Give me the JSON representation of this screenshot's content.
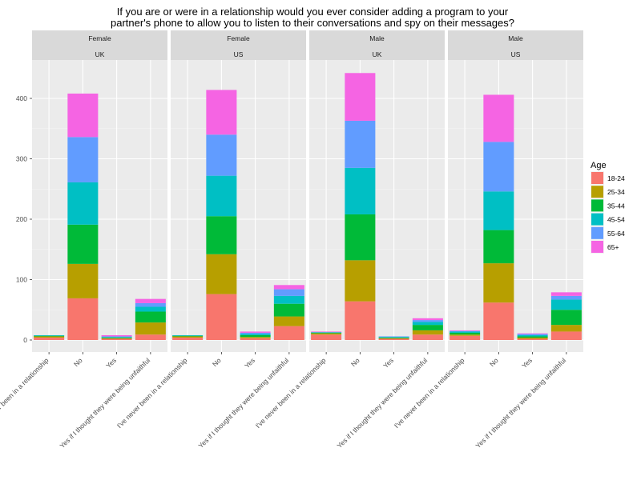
{
  "chart_data": {
    "type": "bar",
    "stacked": true,
    "title_lines": [
      "If you are or were in a relationship would you ever consider adding a program to your",
      "partner's phone to allow you to listen to their conversations and spy on their messages?"
    ],
    "xlabel": "",
    "ylabel": "",
    "ylim": [
      0,
      450
    ],
    "yticks": [
      0,
      100,
      200,
      300,
      400
    ],
    "grid": true,
    "legend_position": "right",
    "legend_title": "Age",
    "categories": [
      "I've never been in a relationship",
      "No",
      "Yes",
      "Yes if I thought they were being unfaithful"
    ],
    "series": [
      {
        "name": "18-24",
        "color": "#F8766D"
      },
      {
        "name": "25-34",
        "color": "#B79F00"
      },
      {
        "name": "35-44",
        "color": "#00BA38"
      },
      {
        "name": "45-54",
        "color": "#00BFC4"
      },
      {
        "name": "55-64",
        "color": "#619CFF"
      },
      {
        "name": "65+",
        "color": "#F564E3"
      }
    ],
    "facets": [
      {
        "gender": "Female",
        "country": "UK",
        "values": [
          [
            4,
            69,
            2,
            9
          ],
          [
            2,
            57,
            1,
            20
          ],
          [
            1,
            65,
            1,
            18
          ],
          [
            1,
            70,
            1,
            8
          ],
          [
            0,
            75,
            1,
            6
          ],
          [
            0,
            72,
            2,
            7
          ]
        ]
      },
      {
        "gender": "Female",
        "country": "US",
        "values": [
          [
            4,
            76,
            3,
            23
          ],
          [
            2,
            66,
            2,
            16
          ],
          [
            1,
            63,
            3,
            21
          ],
          [
            1,
            67,
            2,
            13
          ],
          [
            0,
            68,
            2,
            11
          ],
          [
            0,
            74,
            2,
            7
          ]
        ]
      },
      {
        "gender": "Male",
        "country": "UK",
        "values": [
          [
            9,
            64,
            2,
            9
          ],
          [
            2,
            68,
            1,
            7
          ],
          [
            1,
            76,
            1,
            9
          ],
          [
            1,
            77,
            1,
            5
          ],
          [
            0,
            78,
            1,
            3
          ],
          [
            1,
            79,
            0,
            3
          ]
        ]
      },
      {
        "gender": "Male",
        "country": "US",
        "values": [
          [
            7,
            62,
            2,
            14
          ],
          [
            2,
            65,
            2,
            11
          ],
          [
            3,
            55,
            2,
            25
          ],
          [
            2,
            64,
            2,
            17
          ],
          [
            1,
            82,
            2,
            6
          ],
          [
            1,
            78,
            1,
            6
          ]
        ]
      }
    ]
  }
}
